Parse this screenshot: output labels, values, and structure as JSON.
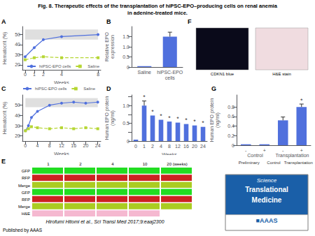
{
  "title": "Fig. 8. Therapeutic effects of the transplantation of hiPSC-EPO–producing cells on renal anemia\nin adenine-treated mice.",
  "annotations": [
    "Hirofumi Hitomi et al., Sci Transl Med 2017;9:eaaj2300",
    "Published by AAAS"
  ],
  "logo": {
    "annotations": [
      "Science",
      "Translational",
      "Medicine",
      "■AAAS"
    ],
    "color": "#1a5fa8"
  },
  "chart_data": [
    {
      "type": "line",
      "title": "A",
      "xlabel": "Weeks",
      "ylabel": "Hematocrit (%)",
      "x": [
        0,
        1,
        2,
        4,
        8
      ],
      "series": [
        {
          "name": "hiPSC-EPO cells",
          "values": [
            28,
            37,
            45,
            48,
            50
          ],
          "marker": "circle",
          "line_style": "solid"
        },
        {
          "name": "Saline",
          "values": [
            25,
            27,
            28,
            27,
            27
          ],
          "marker": "square",
          "line_style": "dashed"
        }
      ],
      "band": [
        45,
        55
      ],
      "xlim": [
        -0.3,
        8.3
      ],
      "xticks": [
        0,
        1,
        2,
        4,
        8
      ],
      "ylim": [
        15,
        58
      ],
      "yticks": [
        20,
        30,
        40,
        50
      ],
      "legend": "lower right",
      "grid": false
    },
    {
      "type": "bar",
      "title": "B",
      "ylabel": "Relative EPO\nexpression",
      "categories": [
        "Saline",
        "hiPSC-EPO\ncells"
      ],
      "values": [
        0.04,
        1.5
      ],
      "error": [
        null,
        0.22
      ],
      "ylim": [
        0,
        2.0
      ],
      "yticks": [
        0,
        0.5,
        {
          "value": 1.0,
          "label": "1.0"
        },
        1.5
      ],
      "grid": false
    },
    {
      "type": "line",
      "title": "C",
      "xlabel": "Weeks",
      "ylabel": "Hematocrit (%)",
      "x": [
        0,
        1,
        2,
        4,
        8,
        12,
        16,
        20,
        24
      ],
      "series": [
        {
          "name": "hiPSC-EPO cells",
          "values": [
            25,
            30,
            38,
            44,
            50,
            52,
            53,
            52,
            53
          ],
          "marker": "circle",
          "line_style": "solid"
        },
        {
          "name": "Saline",
          "values": [
            25,
            27,
            29,
            28,
            27,
            28,
            27,
            28,
            27
          ],
          "marker": "square",
          "line_style": "dashed"
        }
      ],
      "band": [
        48,
        57
      ],
      "xlim": [
        -1,
        25
      ],
      "xticks": [
        0,
        4,
        8,
        12,
        16,
        20,
        24
      ],
      "ylim": [
        15,
        60
      ],
      "yticks": [
        20,
        30,
        40,
        50
      ],
      "legend": "upper left",
      "grid": false
    },
    {
      "type": "bar",
      "title": "D",
      "xlabel": "Weeks",
      "ylabel": "Human EPO protein\n(ng/ml)",
      "categories": [
        "0",
        "1",
        "2",
        "4",
        "8",
        "12",
        "16",
        "20",
        "24"
      ],
      "values": [
        0.04,
        1.0,
        0.72,
        0.6,
        0.55,
        0.52,
        0.48,
        0.44,
        0.4
      ],
      "error": [
        null,
        0.13,
        null,
        null,
        null,
        null,
        null,
        null,
        null
      ],
      "significance": [
        null,
        "*",
        "*",
        "*",
        "*",
        "*",
        "*",
        "*",
        "*"
      ],
      "ylim": [
        0,
        1.3
      ],
      "yticks": [
        0,
        {
          "value": 0.25,
          "label": null
        },
        0.5,
        {
          "value": 0.75,
          "label": null
        },
        {
          "value": 1.0,
          "label": "1.0"
        },
        {
          "value": 1.25,
          "label": null
        }
      ],
      "grid": false
    },
    {
      "type": "image_grid",
      "title": "E",
      "categories": [
        "1",
        "2",
        "4",
        "10",
        "20 (weeks)"
      ],
      "rows": [
        "GFP",
        "RFP",
        "Merge",
        "GFP",
        "RFP",
        "Merge",
        "H&E"
      ],
      "colors": [
        [
          "#22dd22",
          "#22dd22",
          "#22dd22",
          "#22dd22",
          "#22dd22"
        ],
        [
          "#cc2222",
          "#cc2222",
          "#cc2222",
          "#cc2222",
          "#cc2222"
        ],
        [
          "#aacc22",
          "#aacc22",
          "#aacc22",
          "#aacc22",
          "#aacc22"
        ],
        [
          "#22dd22",
          "#22dd22",
          "#22dd22",
          "#22dd22",
          "#22dd22"
        ],
        [
          "#cc2222",
          "#cc2222",
          "#cc2222",
          "#cc2222",
          "#cc2222"
        ],
        [
          "#aacc22",
          "#aacc22",
          "#aacc22",
          "#aacc22",
          "#aacc22"
        ],
        [
          "#f5b8d0",
          "#f5b8d0",
          "#f5b8d0",
          "#f5b8d0",
          null
        ]
      ]
    },
    {
      "type": "image",
      "title": "F",
      "annotations": [
        "CDKN1 blue",
        "H&E stain"
      ],
      "colors": [
        "#0a0a1a",
        "#f0dce0"
      ]
    },
    {
      "type": "bar",
      "title": "G",
      "ylabel": "Human EPO protein\n(ng/ml)",
      "categories": [
        "-",
        "+",
        "-",
        "+"
      ],
      "groups": [
        "Control",
        "Transplantation"
      ],
      "values": [
        0.02,
        0.02,
        0.52,
        0.8
      ],
      "error": [
        null,
        null,
        0.07,
        0.06
      ],
      "significance": [
        null,
        null,
        null,
        "*"
      ],
      "annotations": [
        "Preliminary",
        "Control",
        "Transplantation"
      ],
      "ylim": [
        0,
        1.05
      ],
      "yticks": [
        0,
        0.2,
        0.4,
        0.6,
        0.8
      ],
      "grid": false
    }
  ]
}
